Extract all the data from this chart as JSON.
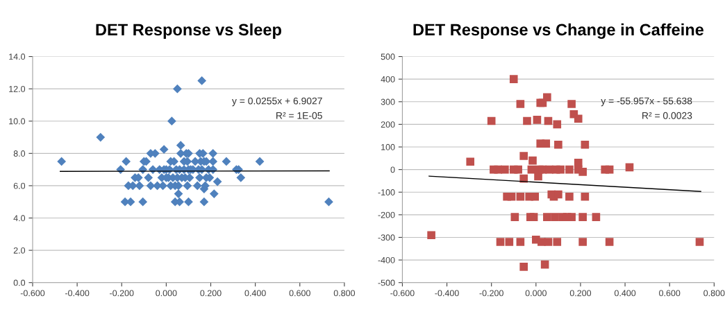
{
  "chart_data": [
    {
      "type": "scatter",
      "title": "DET Response vs Sleep",
      "marker": "diamond",
      "grid": "y",
      "xlim": [
        -0.6,
        0.8
      ],
      "xticks": [
        {
          "value": -0.6,
          "label": "-0.600"
        },
        {
          "value": -0.4,
          "label": "-0.400"
        },
        {
          "value": -0.2,
          "label": "-0.200"
        },
        {
          "value": 0,
          "label": "0.000"
        },
        {
          "value": 0.2,
          "label": "0.200"
        },
        {
          "value": 0.4,
          "label": "0.400"
        },
        {
          "value": 0.6,
          "label": "0.600"
        },
        {
          "value": 0.8,
          "label": "0.800"
        }
      ],
      "ylim": [
        0,
        14
      ],
      "yticks": [
        {
          "value": 0,
          "label": "0.0"
        },
        {
          "value": 2,
          "label": "2.0"
        },
        {
          "value": 4,
          "label": "4.0"
        },
        {
          "value": 6,
          "label": "6.0"
        },
        {
          "value": 8,
          "label": "8.0"
        },
        {
          "value": 10,
          "label": "10.0"
        },
        {
          "value": 12,
          "label": "12.0"
        },
        {
          "value": 14,
          "label": "14.0"
        }
      ],
      "annotations": [
        "y = 0.0255x + 6.9027",
        "R² = 1E-05"
      ],
      "series": [
        {
          "color": "#4f81bd",
          "x": [
            -0.47,
            -0.295,
            -0.205,
            -0.18,
            -0.185,
            -0.17,
            -0.16,
            -0.15,
            -0.14,
            -0.125,
            -0.12,
            -0.105,
            -0.1,
            -0.105,
            -0.09,
            -0.08,
            -0.07,
            -0.07,
            -0.06,
            -0.05,
            -0.04,
            -0.03,
            -0.02,
            -0.015,
            -0.01,
            -0.01,
            0.0,
            0.0,
            0.01,
            0.015,
            0.02,
            0.02,
            0.025,
            0.03,
            0.035,
            0.04,
            0.04,
            0.045,
            0.05,
            0.05,
            0.055,
            0.055,
            0.06,
            0.06,
            0.065,
            0.065,
            0.07,
            0.08,
            0.08,
            0.085,
            0.09,
            0.095,
            0.095,
            0.1,
            0.1,
            0.1,
            0.105,
            0.11,
            0.12,
            0.13,
            0.14,
            0.145,
            0.15,
            0.15,
            0.155,
            0.16,
            0.16,
            0.165,
            0.17,
            0.17,
            0.17,
            0.175,
            0.18,
            0.18,
            0.19,
            0.195,
            0.21,
            0.21,
            0.21,
            0.215,
            0.23,
            0.27,
            0.315,
            0.325,
            0.335,
            0.42,
            0.73
          ],
          "values": [
            7.5,
            9.0,
            7.0,
            7.5,
            5.0,
            6.0,
            5.0,
            6.0,
            6.5,
            6.5,
            6.0,
            7.0,
            7.5,
            5.0,
            7.5,
            6.5,
            6.0,
            8.0,
            7.0,
            8.0,
            6.0,
            7.0,
            6.5,
            6.0,
            7.0,
            8.25,
            6.5,
            7.0,
            6.5,
            7.0,
            7.5,
            6.0,
            10.0,
            6.5,
            7.5,
            6.0,
            5.0,
            7.0,
            6.5,
            12.0,
            6.0,
            5.5,
            5.0,
            7.0,
            8.0,
            8.5,
            6.5,
            7.0,
            7.5,
            6.5,
            8.0,
            6.0,
            7.5,
            7.0,
            8.0,
            5.0,
            6.5,
            7.0,
            7.0,
            7.5,
            6.0,
            7.0,
            8.0,
            6.5,
            7.5,
            7.0,
            12.5,
            8.0,
            7.5,
            5.0,
            5.8,
            6.0,
            7.5,
            6.5,
            7.0,
            6.5,
            8.0,
            7.5,
            7.0,
            5.5,
            6.25,
            7.5,
            7.0,
            7.0,
            6.5,
            7.5,
            5.0
          ]
        },
        {
          "type": "line",
          "color": "#000000",
          "marker": "none",
          "x": [
            -0.476,
            0.732
          ],
          "values": [
            6.89,
            6.92
          ]
        }
      ]
    },
    {
      "type": "scatter",
      "title": "DET Response vs Change in Caffeine",
      "marker": "square",
      "grid": "y",
      "xlim": [
        -0.6,
        0.8
      ],
      "xticks": [
        {
          "value": -0.6,
          "label": "-0.600"
        },
        {
          "value": -0.4,
          "label": "-0.400"
        },
        {
          "value": -0.2,
          "label": "-0.200"
        },
        {
          "value": 0,
          "label": "0.000"
        },
        {
          "value": 0.2,
          "label": "0.200"
        },
        {
          "value": 0.4,
          "label": "0.400"
        },
        {
          "value": 0.6,
          "label": "0.600"
        },
        {
          "value": 0.8,
          "label": "0.800"
        }
      ],
      "ylim": [
        -500,
        500
      ],
      "yticks": [
        -500,
        -400,
        -300,
        -200,
        -100,
        0,
        100,
        200,
        300,
        400,
        500
      ],
      "annotations": [
        "y = -55.957x - 55.638",
        "R² = 0.0023"
      ],
      "series": [
        {
          "color": "#c0504d",
          "x": [
            -0.47,
            -0.295,
            -0.2,
            -0.19,
            -0.17,
            -0.16,
            -0.14,
            -0.13,
            -0.12,
            -0.11,
            -0.1,
            -0.1,
            -0.095,
            -0.08,
            -0.07,
            -0.07,
            -0.07,
            -0.055,
            -0.055,
            -0.055,
            -0.04,
            -0.03,
            -0.025,
            -0.02,
            -0.015,
            -0.01,
            -0.005,
            0.0,
            0.005,
            0.01,
            0.015,
            0.02,
            0.02,
            0.025,
            0.03,
            0.03,
            0.04,
            0.045,
            0.05,
            0.05,
            0.055,
            0.055,
            0.06,
            0.07,
            0.08,
            0.085,
            0.09,
            0.095,
            0.095,
            0.1,
            0.1,
            0.11,
            0.12,
            0.14,
            0.15,
            0.15,
            0.16,
            0.16,
            0.17,
            0.19,
            0.19,
            0.19,
            0.21,
            0.21,
            0.21,
            0.22,
            0.22,
            0.27,
            0.31,
            0.33,
            0.33,
            0.42,
            0.735
          ],
          "values": [
            -290,
            35,
            215,
            0,
            0,
            -320,
            0,
            -120,
            -320,
            -120,
            0,
            400,
            -210,
            0,
            -120,
            -320,
            290,
            60,
            -40,
            -430,
            215,
            -120,
            -210,
            0,
            40,
            -210,
            -120,
            -310,
            220,
            -30,
            0,
            115,
            295,
            -320,
            295,
            0,
            -420,
            115,
            -210,
            320,
            215,
            -320,
            0,
            -110,
            -120,
            -210,
            0,
            -320,
            200,
            110,
            -110,
            0,
            -210,
            -210,
            0,
            -120,
            -210,
            290,
            245,
            225,
            30,
            0,
            -210,
            -320,
            -10,
            110,
            -120,
            -210,
            0,
            0,
            -320,
            10,
            -320
          ]
        },
        {
          "type": "line",
          "color": "#000000",
          "marker": "none",
          "x": [
            -0.48,
            0.74
          ],
          "values": [
            -29,
            -97
          ]
        }
      ]
    }
  ]
}
